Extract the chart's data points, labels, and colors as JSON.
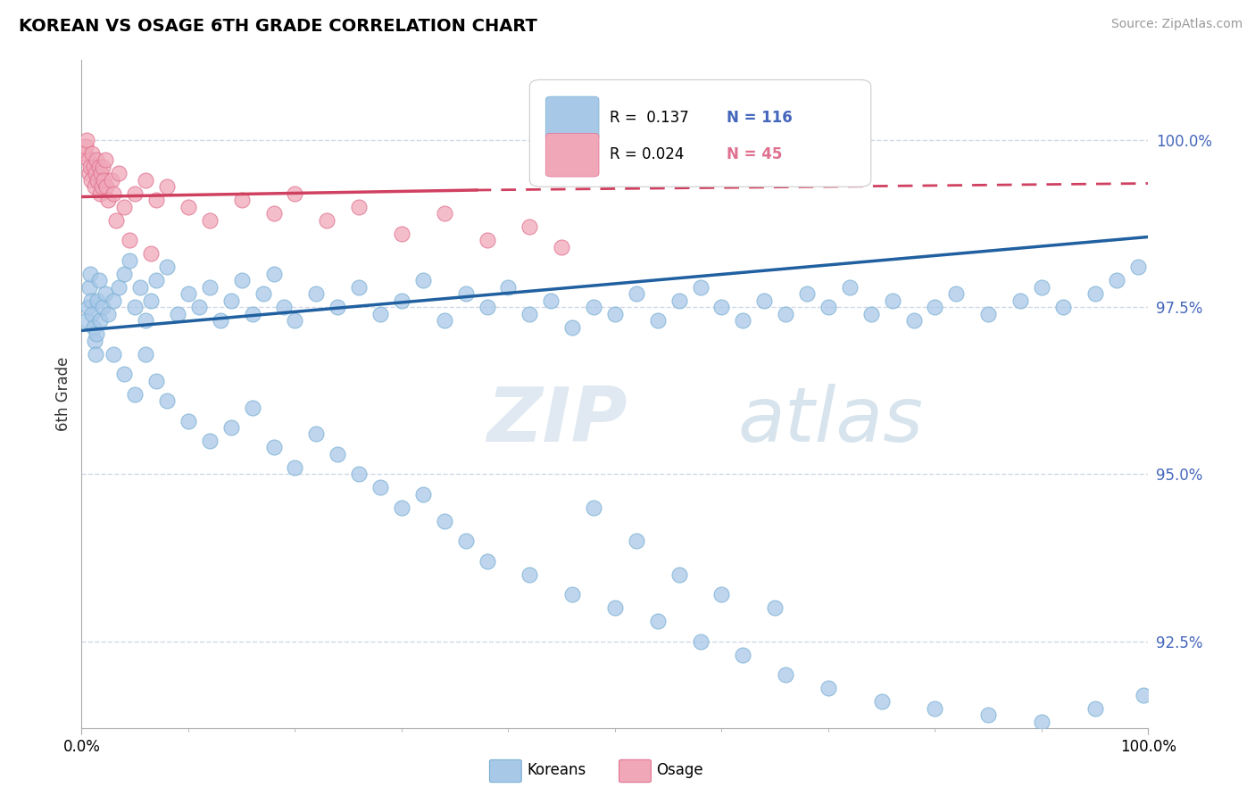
{
  "title": "KOREAN VS OSAGE 6TH GRADE CORRELATION CHART",
  "source_text": "Source: ZipAtlas.com",
  "ylabel": "6th Grade",
  "yticks": [
    92.5,
    95.0,
    97.5,
    100.0
  ],
  "ytick_labels": [
    "92.5%",
    "95.0%",
    "97.5%",
    "100.0%"
  ],
  "xlim": [
    0.0,
    100.0
  ],
  "ylim": [
    91.2,
    101.2
  ],
  "blue_color": "#a8c8e8",
  "pink_color": "#f0a8b8",
  "blue_edge_color": "#7ab0d4",
  "pink_edge_color": "#e07090",
  "blue_line_color": "#2060a0",
  "pink_line_color": "#d04060",
  "watermark_zip": "ZIP",
  "watermark_atlas": "atlas",
  "legend_r_blue": "0.137",
  "legend_n_blue": "116",
  "legend_r_pink": "0.024",
  "legend_n_pink": "45",
  "blue_trend_x0": 0.0,
  "blue_trend_x1": 100.0,
  "blue_trend_y0": 97.15,
  "blue_trend_y1": 98.55,
  "pink_solid_x0": 0.0,
  "pink_solid_x1": 37.0,
  "pink_solid_y0": 99.15,
  "pink_solid_y1": 99.25,
  "pink_dash_x0": 37.0,
  "pink_dash_x1": 100.0,
  "pink_dash_y0": 99.25,
  "pink_dash_y1": 99.35,
  "blue_scatter_x": [
    0.5,
    0.6,
    0.7,
    0.8,
    0.9,
    1.0,
    1.1,
    1.2,
    1.3,
    1.4,
    1.5,
    1.6,
    1.7,
    2.0,
    2.2,
    2.5,
    3.0,
    3.5,
    4.0,
    4.5,
    5.0,
    5.5,
    6.0,
    6.5,
    7.0,
    8.0,
    9.0,
    10.0,
    11.0,
    12.0,
    13.0,
    14.0,
    15.0,
    16.0,
    17.0,
    18.0,
    19.0,
    20.0,
    22.0,
    24.0,
    26.0,
    28.0,
    30.0,
    32.0,
    34.0,
    36.0,
    38.0,
    40.0,
    42.0,
    44.0,
    46.0,
    48.0,
    50.0,
    52.0,
    54.0,
    56.0,
    58.0,
    60.0,
    62.0,
    64.0,
    66.0,
    68.0,
    70.0,
    72.0,
    74.0,
    76.0,
    78.0,
    80.0,
    82.0,
    85.0,
    88.0,
    90.0,
    92.0,
    95.0,
    97.0,
    99.0,
    3.0,
    4.0,
    5.0,
    6.0,
    7.0,
    8.0,
    10.0,
    12.0,
    14.0,
    16.0,
    18.0,
    20.0,
    22.0,
    24.0,
    26.0,
    28.0,
    30.0,
    32.0,
    34.0,
    36.0,
    38.0,
    42.0,
    46.0,
    50.0,
    54.0,
    58.0,
    62.0,
    66.0,
    70.0,
    75.0,
    80.0,
    85.0,
    90.0,
    95.0,
    99.5,
    48.0,
    52.0,
    56.0,
    60.0,
    65.0
  ],
  "blue_scatter_y": [
    97.3,
    97.5,
    97.8,
    98.0,
    97.6,
    97.4,
    97.2,
    97.0,
    96.8,
    97.1,
    97.6,
    97.9,
    97.3,
    97.5,
    97.7,
    97.4,
    97.6,
    97.8,
    98.0,
    98.2,
    97.5,
    97.8,
    97.3,
    97.6,
    97.9,
    98.1,
    97.4,
    97.7,
    97.5,
    97.8,
    97.3,
    97.6,
    97.9,
    97.4,
    97.7,
    98.0,
    97.5,
    97.3,
    97.7,
    97.5,
    97.8,
    97.4,
    97.6,
    97.9,
    97.3,
    97.7,
    97.5,
    97.8,
    97.4,
    97.6,
    97.2,
    97.5,
    97.4,
    97.7,
    97.3,
    97.6,
    97.8,
    97.5,
    97.3,
    97.6,
    97.4,
    97.7,
    97.5,
    97.8,
    97.4,
    97.6,
    97.3,
    97.5,
    97.7,
    97.4,
    97.6,
    97.8,
    97.5,
    97.7,
    97.9,
    98.1,
    96.8,
    96.5,
    96.2,
    96.8,
    96.4,
    96.1,
    95.8,
    95.5,
    95.7,
    96.0,
    95.4,
    95.1,
    95.6,
    95.3,
    95.0,
    94.8,
    94.5,
    94.7,
    94.3,
    94.0,
    93.7,
    93.5,
    93.2,
    93.0,
    92.8,
    92.5,
    92.3,
    92.0,
    91.8,
    91.6,
    91.5,
    91.4,
    91.3,
    91.5,
    91.7,
    94.5,
    94.0,
    93.5,
    93.2,
    93.0
  ],
  "pink_scatter_x": [
    0.3,
    0.4,
    0.5,
    0.6,
    0.7,
    0.8,
    0.9,
    1.0,
    1.1,
    1.2,
    1.3,
    1.4,
    1.5,
    1.6,
    1.7,
    1.8,
    1.9,
    2.0,
    2.1,
    2.2,
    2.3,
    2.5,
    2.8,
    3.0,
    3.5,
    4.0,
    5.0,
    6.0,
    7.0,
    8.0,
    10.0,
    12.0,
    15.0,
    18.0,
    20.0,
    23.0,
    26.0,
    30.0,
    34.0,
    38.0,
    42.0,
    45.0,
    3.2,
    4.5,
    6.5
  ],
  "pink_scatter_y": [
    99.8,
    99.9,
    100.0,
    99.7,
    99.5,
    99.6,
    99.4,
    99.8,
    99.6,
    99.3,
    99.5,
    99.7,
    99.4,
    99.6,
    99.2,
    99.5,
    99.3,
    99.6,
    99.4,
    99.7,
    99.3,
    99.1,
    99.4,
    99.2,
    99.5,
    99.0,
    99.2,
    99.4,
    99.1,
    99.3,
    99.0,
    98.8,
    99.1,
    98.9,
    99.2,
    98.8,
    99.0,
    98.6,
    98.9,
    98.5,
    98.7,
    98.4,
    98.8,
    98.5,
    98.3
  ],
  "grid_color": "#d0d8e8",
  "tick_color": "#4466bb",
  "axis_spine_color": "#aaaaaa",
  "title_fontsize": 14,
  "source_fontsize": 10,
  "tick_fontsize": 12
}
